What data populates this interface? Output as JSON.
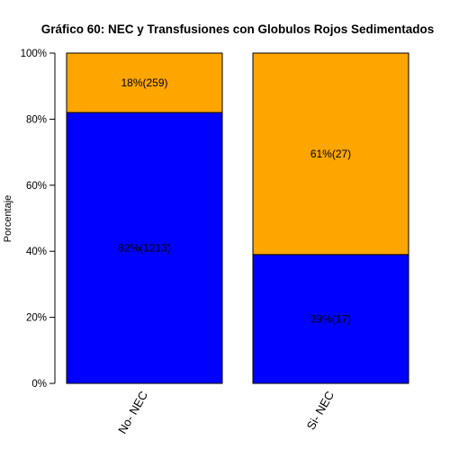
{
  "chart_data": {
    "type": "bar",
    "stacked": true,
    "title": "Gráfico 60: NEC y Transfusiones con Globulos Rojos Sedimentados",
    "xlabel": "",
    "ylabel": "Porcentaje",
    "ylim": [
      0,
      100
    ],
    "yticks": [
      "0%",
      "20%",
      "40%",
      "60%",
      "80%",
      "100%"
    ],
    "categories": [
      "No- NEC",
      "Si- NEC"
    ],
    "series": [
      {
        "color": "#0000ff",
        "values": [
          82,
          39
        ],
        "labels": [
          "82%(1213)",
          "39%(17)"
        ]
      },
      {
        "color": "#ffa500",
        "values": [
          18,
          61
        ],
        "labels": [
          "18%(259)",
          "61%(27)"
        ]
      }
    ],
    "grid": false,
    "legend": "none"
  }
}
